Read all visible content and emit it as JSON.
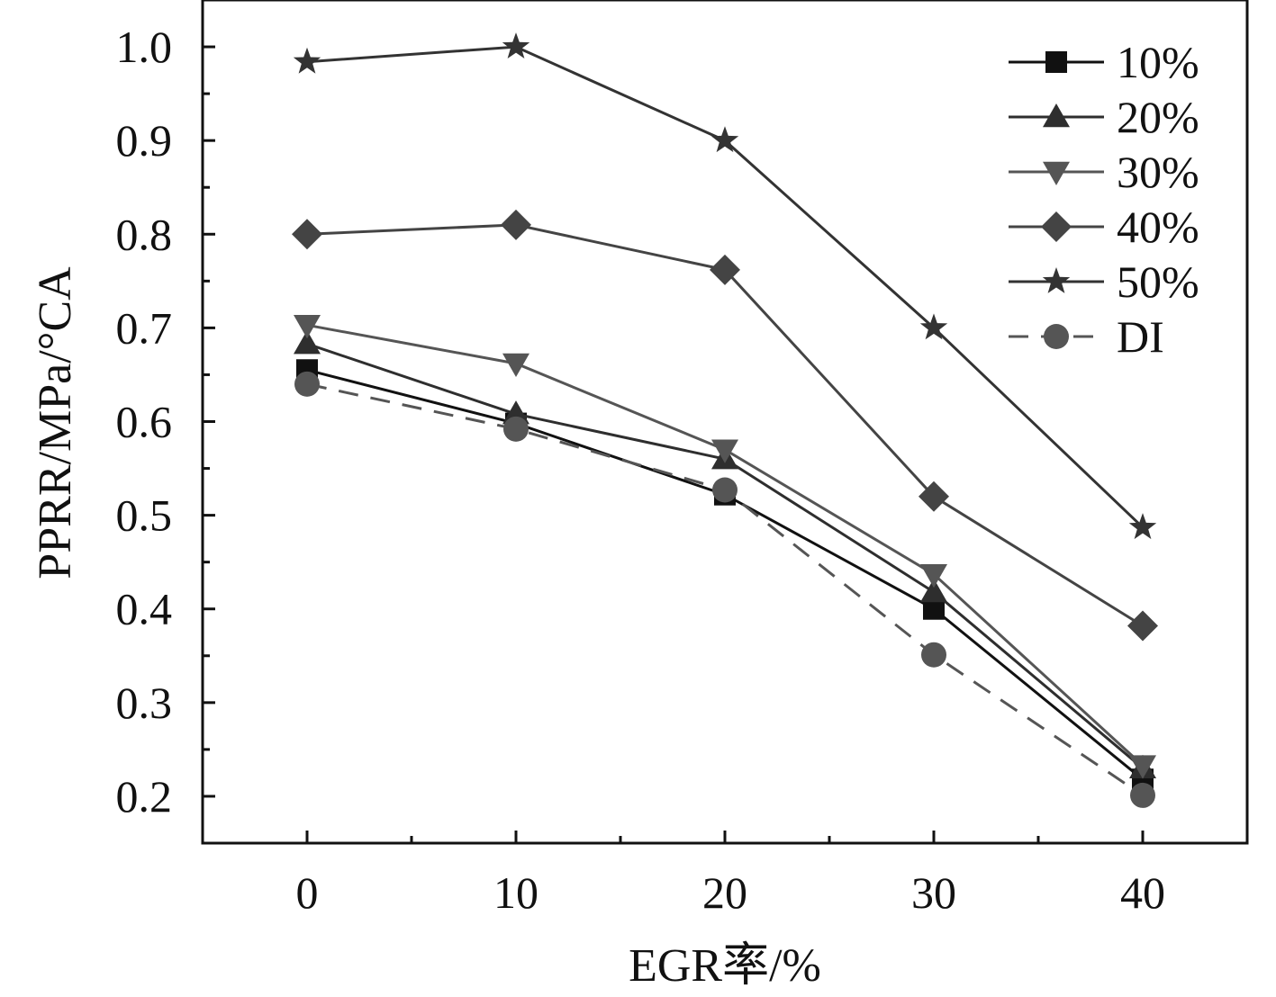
{
  "chart_data": {
    "type": "line",
    "title": "",
    "xlabel": "EGR率/%",
    "ylabel": "PPRR/MPa/°CA",
    "x": [
      0,
      10,
      20,
      30,
      40
    ],
    "xticks": [
      "0",
      "10",
      "20",
      "30",
      "40"
    ],
    "yticks": [
      "0.2",
      "0.3",
      "0.4",
      "0.5",
      "0.6",
      "0.7",
      "0.8",
      "0.9",
      "1.0"
    ],
    "xlim": [
      -5,
      45
    ],
    "ylim": [
      0.15,
      1.05
    ],
    "legend_position": "top-right",
    "series": [
      {
        "name": "10%",
        "marker": "square",
        "color": "#111111",
        "dashed": false,
        "values": [
          0.655,
          0.598,
          0.522,
          0.4,
          0.218
        ]
      },
      {
        "name": "20%",
        "marker": "triangle-up",
        "color": "#2e2e2e",
        "dashed": false,
        "values": [
          0.683,
          0.608,
          0.56,
          0.418,
          0.23
        ]
      },
      {
        "name": "30%",
        "marker": "triangle-down",
        "color": "#555555",
        "dashed": false,
        "values": [
          0.703,
          0.662,
          0.57,
          0.437,
          0.233
        ]
      },
      {
        "name": "40%",
        "marker": "diamond",
        "color": "#444444",
        "dashed": false,
        "values": [
          0.8,
          0.81,
          0.762,
          0.52,
          0.382
        ]
      },
      {
        "name": "50%",
        "marker": "star",
        "color": "#333333",
        "dashed": false,
        "values": [
          0.984,
          1.0,
          0.9,
          0.7,
          0.487
        ]
      },
      {
        "name": "DI",
        "marker": "circle",
        "color": "#555555",
        "dashed": true,
        "values": [
          0.64,
          0.592,
          0.527,
          0.351,
          0.201
        ]
      }
    ]
  }
}
